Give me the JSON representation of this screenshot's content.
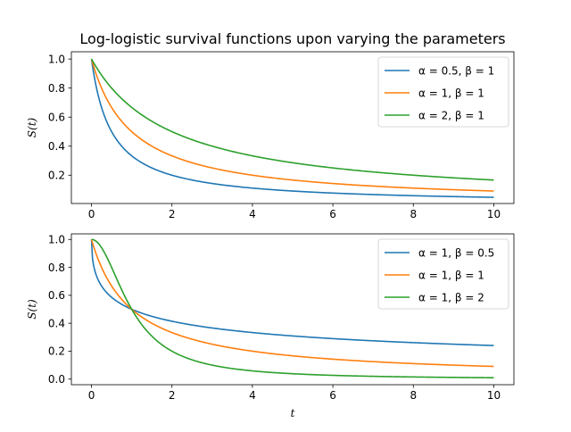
{
  "figure": {
    "title": "Log-logistic survival functions upon varying the parameters"
  },
  "chart_data": [
    {
      "type": "line",
      "title": "Log-logistic survival functions upon varying the parameters",
      "xlabel": "",
      "ylabel": "S(t)",
      "xlim": [
        -0.5,
        10.5
      ],
      "ylim": [
        0.005,
        1.05
      ],
      "xticks": [
        "0",
        "2",
        "4",
        "6",
        "8",
        "10"
      ],
      "yticks": [
        "0.2",
        "0.4",
        "0.6",
        "0.8",
        "1.0"
      ],
      "grid": false,
      "legend": "top-right",
      "x": [
        0,
        0.1,
        0.25,
        0.5,
        0.75,
        1,
        1.5,
        2,
        3,
        4,
        5,
        6,
        7,
        8,
        9,
        10
      ],
      "series": [
        {
          "name": "α = 0.5, β = 1",
          "color": "#1f77b4",
          "values": [
            1.0,
            0.833,
            0.667,
            0.5,
            0.4,
            0.333,
            0.25,
            0.2,
            0.143,
            0.111,
            0.091,
            0.077,
            0.067,
            0.059,
            0.053,
            0.048
          ]
        },
        {
          "name": "α = 1, β = 1",
          "color": "#ff7f0e",
          "values": [
            1.0,
            0.909,
            0.8,
            0.667,
            0.571,
            0.5,
            0.4,
            0.333,
            0.25,
            0.2,
            0.167,
            0.143,
            0.125,
            0.111,
            0.1,
            0.091
          ]
        },
        {
          "name": "α = 2, β = 1",
          "color": "#2ca02c",
          "values": [
            1.0,
            0.952,
            0.889,
            0.8,
            0.727,
            0.667,
            0.571,
            0.5,
            0.4,
            0.333,
            0.286,
            0.25,
            0.222,
            0.2,
            0.182,
            0.167
          ]
        }
      ]
    },
    {
      "type": "line",
      "title": "",
      "xlabel": "t",
      "ylabel": "S(t)",
      "xlim": [
        -0.5,
        10.5
      ],
      "ylim": [
        -0.04,
        1.04
      ],
      "xticks": [
        "0",
        "2",
        "4",
        "6",
        "8",
        "10"
      ],
      "yticks": [
        "0.0",
        "0.2",
        "0.4",
        "0.6",
        "0.8",
        "1.0"
      ],
      "grid": false,
      "legend": "top-right",
      "x": [
        0,
        0.1,
        0.25,
        0.5,
        0.75,
        1,
        1.5,
        2,
        3,
        4,
        5,
        6,
        7,
        8,
        9,
        10
      ],
      "series": [
        {
          "name": "α = 1, β = 0.5",
          "color": "#1f77b4",
          "values": [
            1.0,
            0.76,
            0.667,
            0.586,
            0.536,
            0.5,
            0.45,
            0.414,
            0.366,
            0.333,
            0.309,
            0.29,
            0.274,
            0.261,
            0.25,
            0.24
          ]
        },
        {
          "name": "α = 1, β = 1",
          "color": "#ff7f0e",
          "values": [
            1.0,
            0.909,
            0.8,
            0.667,
            0.571,
            0.5,
            0.4,
            0.333,
            0.25,
            0.2,
            0.167,
            0.143,
            0.125,
            0.111,
            0.1,
            0.091
          ]
        },
        {
          "name": "α = 1, β = 2",
          "color": "#2ca02c",
          "values": [
            1.0,
            0.99,
            0.941,
            0.8,
            0.64,
            0.5,
            0.308,
            0.2,
            0.1,
            0.059,
            0.038,
            0.027,
            0.02,
            0.015,
            0.012,
            0.01
          ]
        }
      ]
    }
  ]
}
